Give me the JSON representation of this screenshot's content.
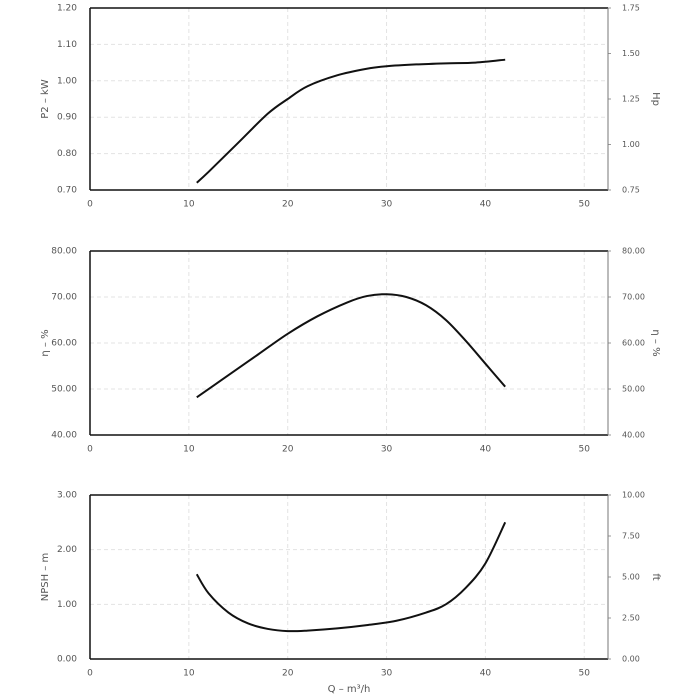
{
  "chart_data": [
    {
      "type": "line",
      "ylabel": "P2 – kW",
      "y2label": "Hp",
      "x": [
        10.8,
        12,
        15,
        18,
        20,
        22,
        25,
        28,
        30,
        33,
        36,
        39,
        42
      ],
      "values": [
        0.72,
        0.75,
        0.83,
        0.91,
        0.95,
        0.985,
        1.015,
        1.033,
        1.04,
        1.045,
        1.048,
        1.05,
        1.058
      ],
      "color": "#111111",
      "grid": true,
      "xlim": [
        0,
        52.4
      ],
      "xticks": [
        0,
        10,
        20,
        30,
        40,
        50
      ],
      "ylim": [
        0.7,
        1.2
      ],
      "yticks": [
        {
          "value": 0.7,
          "label": "0.70"
        },
        {
          "value": 0.8,
          "label": "0.80"
        },
        {
          "value": 0.9,
          "label": "0.90"
        },
        {
          "value": 1.0,
          "label": "1.00"
        },
        {
          "value": 1.1,
          "label": "1.10"
        },
        {
          "value": 1.2,
          "label": "1.20"
        }
      ],
      "y2lim": [
        0.75,
        1.75
      ],
      "y2ticks": [
        {
          "value": 0.75,
          "label": "0.75"
        },
        {
          "value": 1.0,
          "label": "1.00"
        },
        {
          "value": 1.25,
          "label": "1.25"
        },
        {
          "value": 1.5,
          "label": "1.50"
        },
        {
          "value": 1.75,
          "label": "1.75"
        }
      ]
    },
    {
      "type": "line",
      "ylabel": "η – %",
      "y2label": "η – %",
      "x": [
        10.8,
        14,
        17,
        20,
        23,
        26,
        28,
        30,
        32,
        34,
        36,
        38,
        40,
        42
      ],
      "values": [
        48.2,
        53,
        57.5,
        62,
        65.8,
        68.8,
        70.2,
        70.6,
        70,
        68.2,
        65,
        60.5,
        55.5,
        50.5
      ],
      "color": "#111111",
      "grid": true,
      "xlim": [
        0,
        52.4
      ],
      "xticks": [
        0,
        10,
        20,
        30,
        40,
        50
      ],
      "ylim": [
        40,
        80
      ],
      "yticks": [
        {
          "value": 40,
          "label": "40.00"
        },
        {
          "value": 50,
          "label": "50.00"
        },
        {
          "value": 60,
          "label": "60.00"
        },
        {
          "value": 70,
          "label": "70.00"
        },
        {
          "value": 80,
          "label": "80.00"
        }
      ],
      "y2lim": [
        40,
        80
      ],
      "y2ticks": [
        {
          "value": 40,
          "label": "40.00"
        },
        {
          "value": 50,
          "label": "50.00"
        },
        {
          "value": 60,
          "label": "60.00"
        },
        {
          "value": 70,
          "label": "70.00"
        },
        {
          "value": 80,
          "label": "80.00"
        }
      ]
    },
    {
      "type": "line",
      "ylabel": "NPSH – m",
      "y2label": "ft",
      "xlabel": "Q – m³/h",
      "x": [
        10.8,
        12,
        14,
        16,
        18,
        20,
        22,
        25,
        28,
        31,
        34,
        36,
        38,
        40,
        42
      ],
      "values": [
        1.55,
        1.2,
        0.85,
        0.65,
        0.55,
        0.51,
        0.52,
        0.56,
        0.62,
        0.7,
        0.85,
        1.0,
        1.3,
        1.75,
        2.5
      ],
      "color": "#111111",
      "grid": true,
      "xlim": [
        0,
        52.4
      ],
      "xticks": [
        0,
        10,
        20,
        30,
        40,
        50
      ],
      "ylim": [
        0,
        3
      ],
      "yticks": [
        {
          "value": 0,
          "label": "0.00"
        },
        {
          "value": 1,
          "label": "1.00"
        },
        {
          "value": 2,
          "label": "2.00"
        },
        {
          "value": 3,
          "label": "3.00"
        }
      ],
      "y2lim": [
        0,
        10
      ],
      "y2ticks": [
        {
          "value": 0,
          "label": "0.00"
        },
        {
          "value": 2.5,
          "label": "2.50"
        },
        {
          "value": 5,
          "label": "5.00"
        },
        {
          "value": 7.5,
          "label": "7.50"
        },
        {
          "value": 10,
          "label": "10.00"
        }
      ]
    }
  ]
}
